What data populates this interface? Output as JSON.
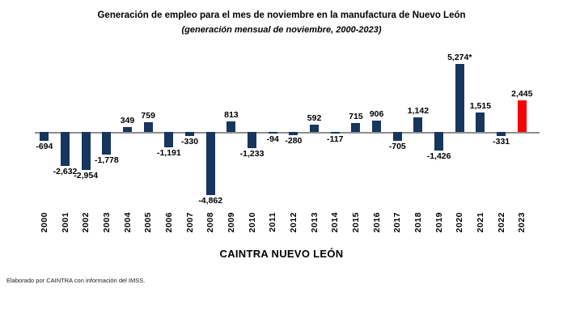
{
  "footer": "Elaborado por CAINTRA con información del IMSS.",
  "chart_data": {
    "type": "bar",
    "title": "Generación de empleo para el mes de noviembre en la manufactura de Nuevo León",
    "subtitle": "(generación mensual de noviembre, 2000-2023)",
    "xlabel": "CAINTRA NUEVO LEÓN",
    "ylabel": "",
    "categories": [
      "2000",
      "2001",
      "2002",
      "2003",
      "2004",
      "2005",
      "2006",
      "2007",
      "2008",
      "2009",
      "2010",
      "2011",
      "2012",
      "2013",
      "2014",
      "2015",
      "2016",
      "2017",
      "2018",
      "2019",
      "2020",
      "2021",
      "2022",
      "2023"
    ],
    "values": [
      -694,
      -2632,
      -2954,
      -1778,
      349,
      759,
      -1191,
      -330,
      -4862,
      813,
      -1233,
      -94,
      -280,
      592,
      -117,
      715,
      906,
      -705,
      1142,
      -1426,
      5274,
      1515,
      -331,
      2445
    ],
    "labels": [
      "-694",
      "-2,632",
      "-2,954",
      "-1,778",
      "349",
      "759",
      "-1,191",
      "-330",
      "-4,862",
      "813",
      "-1,233",
      "-94",
      "-280",
      "592",
      "-117",
      "715",
      "906",
      "-705",
      "1,142",
      "-1,426",
      "5,274*",
      "1,515",
      "-331",
      "2,445"
    ],
    "bar_color": "#17365d",
    "highlight_color": "#f40404",
    "highlight_index": 23,
    "axis_color": "#8e8e8e",
    "ylim": [
      -5000,
      5500
    ],
    "grid": false,
    "legend": null
  }
}
